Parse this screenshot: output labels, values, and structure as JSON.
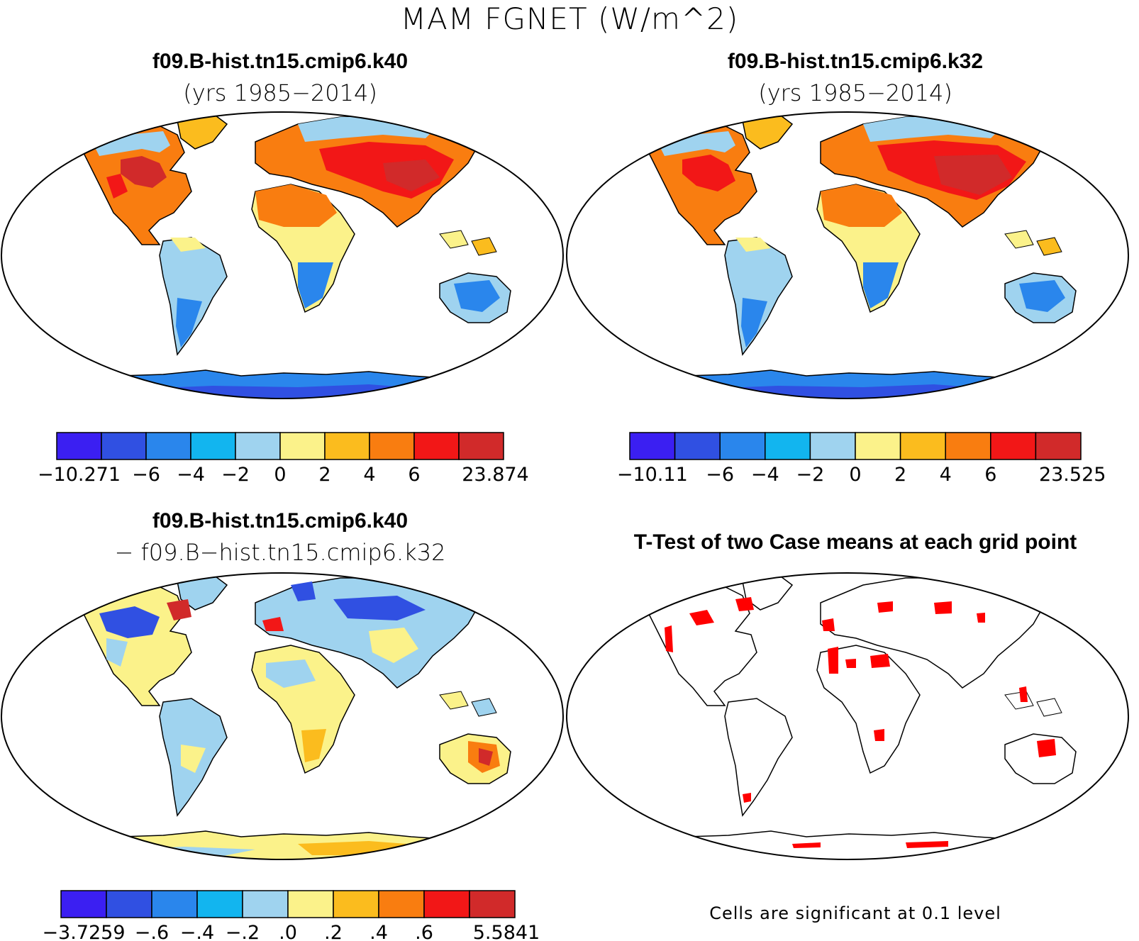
{
  "figure": {
    "title": "MAM FGNET (W/m^2)"
  },
  "panels": [
    {
      "id": "k40",
      "title": "f09.B-hist.tn15.cmip6.k40",
      "subtitle": "(yrs 1985−2014)",
      "colorbar": {
        "colors": [
          "#3b1ff2",
          "#3050e2",
          "#2a86ec",
          "#12b5ef",
          "#9fd3ef",
          "#fbf28a",
          "#fbbc1e",
          "#f97d10",
          "#f21717",
          "#d12a2a"
        ],
        "labels": [
          "−10.271",
          "−6",
          "−4",
          "−2",
          "0",
          "2",
          "4",
          "6",
          "23.874"
        ]
      }
    },
    {
      "id": "k32",
      "title": "f09.B-hist.tn15.cmip6.k32",
      "subtitle": "(yrs 1985−2014)",
      "colorbar": {
        "colors": [
          "#3b1ff2",
          "#3050e2",
          "#2a86ec",
          "#12b5ef",
          "#9fd3ef",
          "#fbf28a",
          "#fbbc1e",
          "#f97d10",
          "#f21717",
          "#d12a2a"
        ],
        "labels": [
          "−10.11",
          "−6",
          "−4",
          "−2",
          "0",
          "2",
          "4",
          "6",
          "23.525"
        ]
      }
    },
    {
      "id": "diff",
      "title": "f09.B-hist.tn15.cmip6.k40",
      "subtitle": "− f09.B−hist.tn15.cmip6.k32",
      "colorbar": {
        "colors": [
          "#3b1ff2",
          "#3050e2",
          "#2a86ec",
          "#12b5ef",
          "#9fd3ef",
          "#fbf28a",
          "#fbbc1e",
          "#f97d10",
          "#f21717",
          "#d12a2a"
        ],
        "labels": [
          "−3.7259",
          "−.6",
          "−.4",
          "−.2",
          ".0",
          ".2",
          ".4",
          ".6",
          "5.5841"
        ]
      }
    },
    {
      "id": "ttest",
      "title": "T-Test of two Case means at each grid point",
      "note": "Cells are significant at 0.1 level",
      "significance_color": "#ff0000"
    }
  ]
}
